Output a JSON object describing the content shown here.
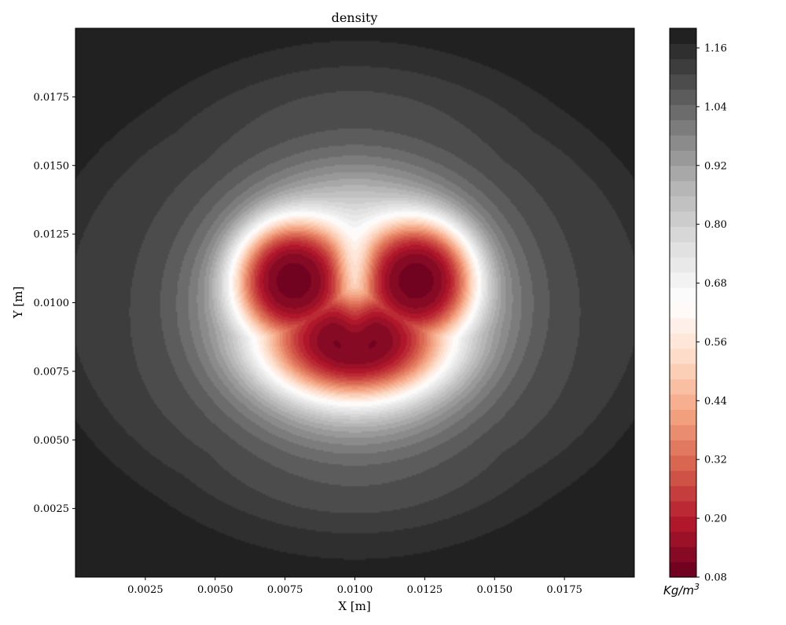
{
  "chart_data": {
    "type": "heatmap",
    "subtype": "filled-contour",
    "title": "density",
    "xlabel": "X [m]",
    "ylabel": "Y [m]",
    "xlim": [
      0.0,
      0.02
    ],
    "ylim": [
      0.0,
      0.02
    ],
    "xticks": [
      "0.0025",
      "0.0050",
      "0.0075",
      "0.0100",
      "0.0125",
      "0.0150",
      "0.0175"
    ],
    "yticks": [
      "0.0025",
      "0.0050",
      "0.0075",
      "0.0100",
      "0.0125",
      "0.0150",
      "0.0175"
    ],
    "grid": false,
    "colormap": "RdGy",
    "colorbar": {
      "label": "Kg/m^3",
      "label_base": "Kg/m",
      "label_exponent": "3",
      "range": [
        0.08,
        1.2
      ],
      "ticks": [
        "0.08",
        "0.20",
        "0.32",
        "0.44",
        "0.56",
        "0.68",
        "0.80",
        "0.92",
        "1.04",
        "1.16"
      ],
      "levels": 36
    },
    "field": {
      "background_value": 1.19,
      "low_density_core_min": 0.08,
      "core_center": [
        0.01,
        0.0098
      ],
      "lobe_centers": [
        [
          0.0078,
          0.0108
        ],
        [
          0.0122,
          0.0108
        ]
      ],
      "core_extent_x": [
        0.0068,
        0.0133
      ],
      "core_extent_y": [
        0.0069,
        0.0126
      ]
    }
  }
}
